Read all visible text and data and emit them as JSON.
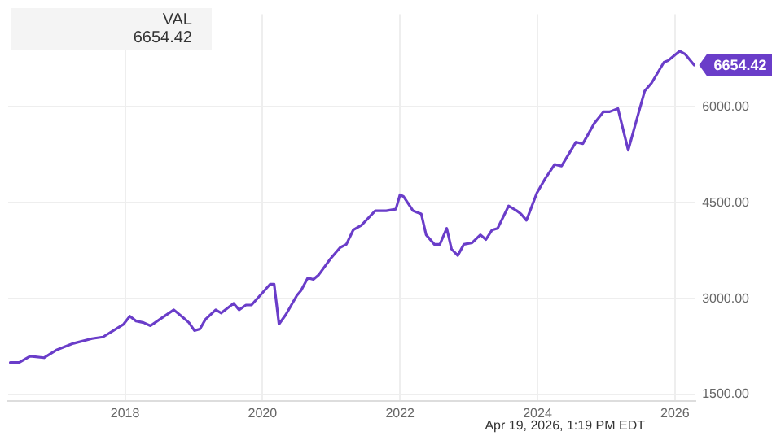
{
  "chart_data": {
    "type": "line",
    "x": [
      2016.33,
      2016.46,
      2016.62,
      2016.82,
      2017.01,
      2017.25,
      2017.52,
      2017.68,
      2017.87,
      2017.98,
      2018.07,
      2018.16,
      2018.27,
      2018.37,
      2018.54,
      2018.71,
      2018.85,
      2018.93,
      2019.01,
      2019.09,
      2019.17,
      2019.32,
      2019.4,
      2019.58,
      2019.66,
      2019.76,
      2019.84,
      2020.11,
      2020.17,
      2020.24,
      2020.34,
      2020.5,
      2020.56,
      2020.66,
      2020.74,
      2020.82,
      2020.99,
      2021.13,
      2021.22,
      2021.32,
      2021.44,
      2021.64,
      2021.8,
      2021.94,
      2022.0,
      2022.05,
      2022.19,
      2022.31,
      2022.38,
      2022.5,
      2022.58,
      2022.68,
      2022.75,
      2022.84,
      2022.93,
      2023.05,
      2023.17,
      2023.25,
      2023.34,
      2023.42,
      2023.58,
      2023.7,
      2023.76,
      2023.84,
      2023.99,
      2024.11,
      2024.25,
      2024.35,
      2024.56,
      2024.66,
      2024.83,
      2024.96,
      2025.05,
      2025.17,
      2025.32,
      2025.43,
      2025.56,
      2025.66,
      2025.84,
      2025.9,
      2026.07,
      2026.15,
      2026.28
    ],
    "series": [
      {
        "color": "#6a3dc9",
        "values": [
          2000,
          2000,
          2100,
          2075,
          2200,
          2300,
          2375,
          2400,
          2525,
          2600,
          2725,
          2650,
          2625,
          2575,
          2700,
          2825,
          2700,
          2625,
          2500,
          2525,
          2675,
          2825,
          2775,
          2925,
          2825,
          2900,
          2900,
          3225,
          3225,
          2600,
          2750,
          3050,
          3125,
          3325,
          3300,
          3375,
          3625,
          3800,
          3850,
          4075,
          4150,
          4375,
          4375,
          4400,
          4625,
          4600,
          4375,
          4325,
          4000,
          3850,
          3850,
          4100,
          3775,
          3675,
          3850,
          3875,
          4000,
          3925,
          4075,
          4100,
          4450,
          4375,
          4325,
          4225,
          4650,
          4875,
          5100,
          5075,
          5450,
          5425,
          5750,
          5925,
          5925,
          5975,
          5325,
          5750,
          6250,
          6375,
          6700,
          6725,
          6875,
          6825,
          6654.42
        ]
      }
    ],
    "xlim": [
      2016.3,
      2026.3
    ],
    "xticks": [
      2018,
      2020,
      2022,
      2024,
      2026
    ],
    "ylim": [
      1400,
      7450
    ],
    "yticks": [
      {
        "value": 1500,
        "label": "1500.00"
      },
      {
        "value": 3000,
        "label": "3000.00"
      },
      {
        "value": 4500,
        "label": "4500.00"
      },
      {
        "value": 6000,
        "label": "6000.00"
      }
    ],
    "grid": true,
    "legend": false,
    "marker": "none",
    "line_style": "solid",
    "annotations": [
      "VAL",
      "6654.42",
      {
        "text": "6654.42",
        "x": 2026.28,
        "y": 6654.42
      },
      "Apr 19, 2026, 1:19 PM EDT"
    ]
  }
}
